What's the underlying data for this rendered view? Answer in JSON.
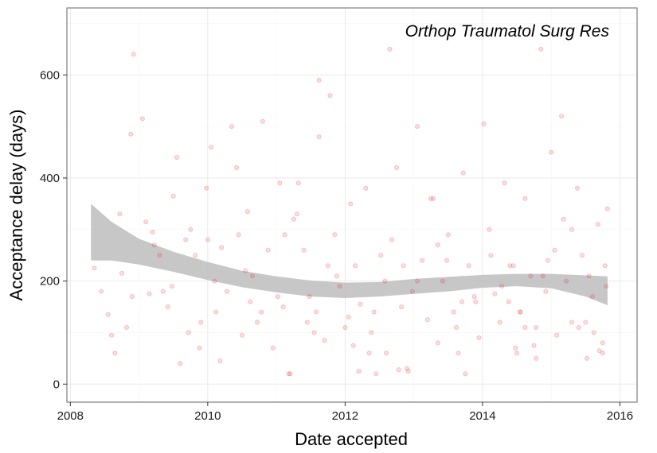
{
  "chart_data": {
    "type": "scatter",
    "title": "Orthop Traumatol Surg Res",
    "xlabel": "Date accepted",
    "ylabel": "Acceptance delay (days)",
    "xlim": [
      2007.95,
      2016.25
    ],
    "ylim": [
      -35,
      730
    ],
    "x_ticks": [
      2008,
      2010,
      2012,
      2014,
      2016
    ],
    "x_tick_labels": [
      "2008",
      "2010",
      "2012",
      "2014",
      "2016"
    ],
    "y_ticks": [
      0,
      200,
      400,
      600
    ],
    "y_tick_labels": [
      "0",
      "200",
      "400",
      "600"
    ],
    "grid": true,
    "legend": "none",
    "colors": {
      "points": "#e41a1c",
      "smooth_band": "#bdbdbd",
      "grid_major": "#ebebeb",
      "grid_minor": "#f5f5f5",
      "border": "#7f7f7f"
    },
    "series": [
      {
        "name": "",
        "x": [
          2008.35,
          2008.55,
          2008.65,
          2008.72,
          2008.75,
          2008.82,
          2008.88,
          2008.92,
          2009.05,
          2009.15,
          2009.2,
          2009.3,
          2009.42,
          2009.5,
          2009.6,
          2009.68,
          2009.75,
          2009.82,
          2009.9,
          2009.98,
          2010.05,
          2010.12,
          2010.2,
          2010.28,
          2010.35,
          2010.42,
          2010.5,
          2010.58,
          2010.65,
          2010.72,
          2010.8,
          2010.88,
          2010.95,
          2011.02,
          2011.1,
          2011.18,
          2011.25,
          2011.32,
          2011.4,
          2011.48,
          2011.55,
          2011.62,
          2011.7,
          2011.78,
          2011.85,
          2011.92,
          2012.0,
          2012.08,
          2012.15,
          2012.22,
          2012.3,
          2012.38,
          2012.45,
          2012.52,
          2012.6,
          2012.68,
          2012.75,
          2012.82,
          2012.9,
          2012.98,
          2013.05,
          2013.12,
          2013.2,
          2013.28,
          2013.35,
          2013.42,
          2013.5,
          2013.58,
          2013.65,
          2013.72,
          2013.8,
          2013.88,
          2013.95,
          2014.02,
          2014.1,
          2014.18,
          2014.25,
          2014.32,
          2014.4,
          2014.48,
          2014.55,
          2014.62,
          2014.7,
          2014.78,
          2014.85,
          2014.92,
          2015.0,
          2015.08,
          2015.15,
          2015.22,
          2015.3,
          2015.38,
          2015.45,
          2015.52,
          2015.6,
          2015.68,
          2015.75,
          2015.82,
          2008.9,
          2009.55,
          2010.0,
          2010.1,
          2011.05,
          2011.62,
          2011.88,
          2012.65,
          2013.35,
          2014.45,
          2014.62,
          2015.18,
          2009.22,
          2009.88,
          2010.62,
          2011.45,
          2012.35,
          2013.05,
          2013.9,
          2014.75,
          2015.4,
          2015.75,
          2010.18,
          2011.2,
          2012.2,
          2012.78,
          2012.92,
          2013.75,
          2014.5,
          2014.78,
          2015.7,
          2009.1,
          2009.48,
          2010.78,
          2011.12,
          2011.75,
          2012.05,
          2012.58,
          2013.25,
          2013.62,
          2014.12,
          2014.38,
          2014.88,
          2015.3,
          2015.62,
          2015.8,
          2008.6,
          2009.35,
          2010.45,
          2011.3,
          2012.42,
          2013.48,
          2014.28,
          2015.05,
          2015.55,
          2008.45,
          2009.72,
          2010.55,
          2011.58,
          2012.12,
          2012.85,
          2013.7,
          2014.55,
          2014.95,
          2015.5,
          2015.78
        ],
        "y": [
          225,
          135,
          60,
          330,
          215,
          110,
          485,
          640,
          515,
          175,
          295,
          250,
          150,
          365,
          40,
          280,
          300,
          250,
          120,
          380,
          460,
          140,
          265,
          180,
          500,
          420,
          95,
          335,
          210,
          120,
          510,
          260,
          70,
          170,
          150,
          20,
          320,
          390,
          260,
          170,
          100,
          480,
          85,
          560,
          290,
          190,
          110,
          350,
          230,
          155,
          380,
          100,
          20,
          250,
          60,
          280,
          420,
          150,
          30,
          180,
          500,
          240,
          125,
          360,
          80,
          200,
          290,
          140,
          60,
          410,
          230,
          170,
          90,
          505,
          300,
          175,
          120,
          390,
          230,
          70,
          140,
          360,
          210,
          110,
          650,
          180,
          450,
          95,
          520,
          200,
          120,
          380,
          250,
          50,
          170,
          310,
          60,
          340,
          170,
          440,
          280,
          200,
          390,
          590,
          210,
          650,
          270,
          230,
          110,
          320,
          270,
          70,
          160,
          120,
          60,
          200,
          160,
          75,
          110,
          80,
          45,
          20,
          25,
          28,
          25,
          20,
          60,
          50,
          65,
          315,
          190,
          140,
          290,
          230,
          130,
          200,
          360,
          110,
          250,
          160,
          210,
          300,
          100,
          190,
          95,
          180,
          290,
          330,
          140,
          240,
          190,
          260,
          210,
          180,
          100,
          220,
          140,
          75,
          230,
          160,
          140,
          240,
          120,
          230
        ],
        "point_alpha": 0.15
      }
    ],
    "smooth": {
      "x": [
        2008.3,
        2008.6,
        2009.0,
        2009.5,
        2010.0,
        2010.5,
        2011.0,
        2011.5,
        2012.0,
        2012.5,
        2013.0,
        2013.5,
        2014.0,
        2014.5,
        2015.0,
        2015.5,
        2015.82
      ],
      "lower": [
        240,
        240,
        232,
        218,
        202,
        188,
        178,
        170,
        167,
        170,
        175,
        180,
        187,
        190,
        186,
        170,
        153
      ],
      "upper": [
        350,
        315,
        282,
        257,
        237,
        220,
        209,
        201,
        197,
        198,
        204,
        208,
        212,
        214,
        214,
        211,
        209
      ]
    }
  }
}
